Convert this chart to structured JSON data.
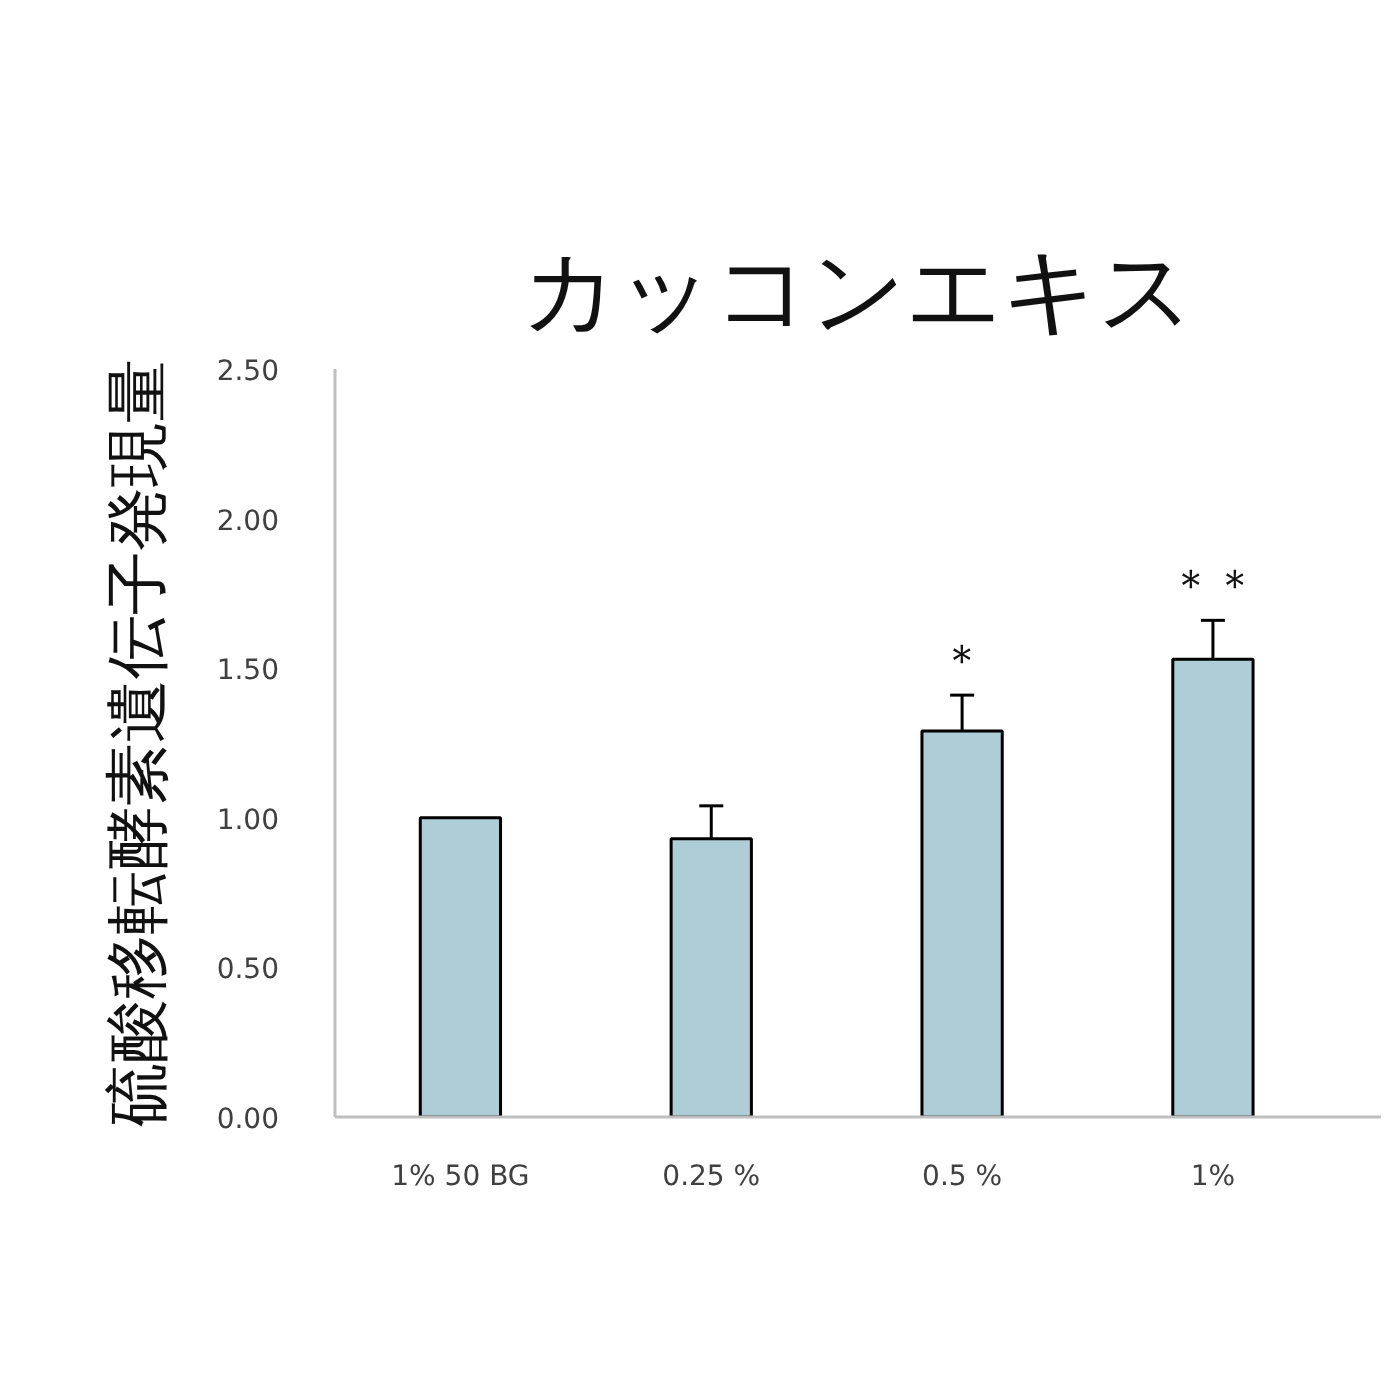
{
  "chart_data": {
    "type": "bar",
    "title": "カッコンエキス",
    "ylabel": "硫酸移転酵素遺伝子発現量",
    "categories": [
      "1% 50 BG",
      "0.25 %",
      "0.5 %",
      "1%"
    ],
    "values": [
      1.0,
      0.93,
      1.29,
      1.53
    ],
    "color": "#aecdd6",
    "errors": [
      null,
      [
        0.93,
        1.04
      ],
      [
        1.29,
        1.41
      ],
      [
        1.53,
        1.66
      ]
    ],
    "ylim": [
      0,
      2.5
    ],
    "yticks": [
      {
        "value": 0,
        "label": "0.00"
      },
      {
        "value": 0.5,
        "label": "0.50"
      },
      {
        "value": 1,
        "label": "1.00"
      },
      {
        "value": 1.5,
        "label": "1.50"
      },
      {
        "value": 2,
        "label": "2.00"
      },
      {
        "value": 2.5,
        "label": "2.50"
      }
    ],
    "grid": false,
    "annotations": [
      {
        "text": "＊",
        "x": "0.5 %",
        "y": 1.41
      },
      {
        "text": "＊＊",
        "x": "1%",
        "y": 1.66
      }
    ]
  }
}
